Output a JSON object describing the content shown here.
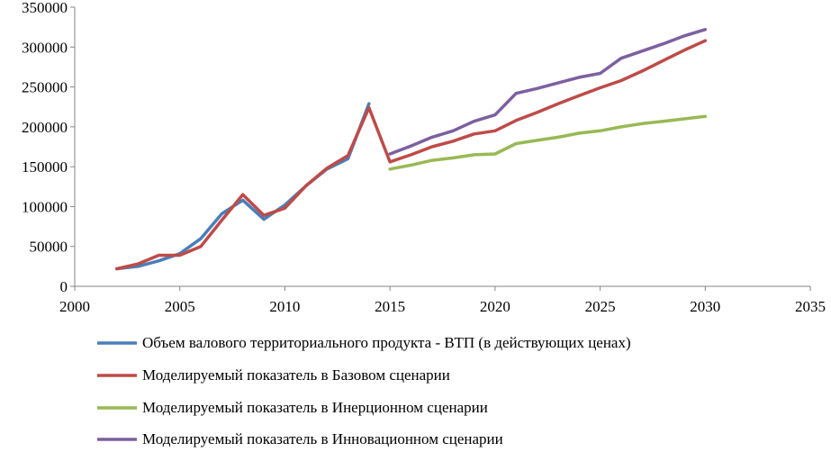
{
  "chart_data": {
    "type": "line",
    "title": "",
    "xlabel": "",
    "ylabel": "",
    "xlim": [
      2000,
      2035
    ],
    "ylim": [
      0,
      350000
    ],
    "x_ticks": [
      2000,
      2005,
      2010,
      2015,
      2020,
      2025,
      2030,
      2035
    ],
    "y_ticks": [
      0,
      50000,
      100000,
      150000,
      200000,
      250000,
      300000,
      350000
    ],
    "x_tick_labels": [
      "2000",
      "2005",
      "2010",
      "2015",
      "2020",
      "2025",
      "2030",
      "2035"
    ],
    "y_tick_labels": [
      "0",
      "50000",
      "100000",
      "150000",
      "200000",
      "250000",
      "300000",
      "350000"
    ],
    "grid": false,
    "legend_position": "bottom",
    "series": [
      {
        "name": "Объем валового территориального продукта - ВТП (в действующих ценах)",
        "color": "#4a7ebb",
        "x": [
          2002,
          2003,
          2004,
          2005,
          2006,
          2007,
          2008,
          2009,
          2010,
          2011,
          2012,
          2013,
          2014
        ],
        "y": [
          22000,
          25000,
          32000,
          41000,
          60000,
          91000,
          108000,
          84000,
          102000,
          126000,
          147000,
          160000,
          229000
        ]
      },
      {
        "name": "Моделируемый показатель в Базовом сценарии",
        "color": "#be4b48",
        "x": [
          2002,
          2003,
          2004,
          2005,
          2006,
          2007,
          2008,
          2009,
          2010,
          2011,
          2012,
          2013,
          2014,
          2015,
          2016,
          2017,
          2018,
          2019,
          2020,
          2021,
          2022,
          2023,
          2024,
          2025,
          2026,
          2027,
          2028,
          2029,
          2030
        ],
        "y": [
          22000,
          28000,
          39000,
          39000,
          50000,
          83000,
          115000,
          89000,
          98000,
          126000,
          148000,
          164000,
          224000,
          156000,
          165000,
          175000,
          182000,
          191000,
          195000,
          208000,
          218000,
          229000,
          239000,
          249000,
          258000,
          270000,
          283000,
          296000,
          308000
        ]
      },
      {
        "name": "Моделируемый показатель в Инерционном сценарии",
        "color": "#98b954",
        "x": [
          2015,
          2016,
          2017,
          2018,
          2019,
          2020,
          2021,
          2022,
          2023,
          2024,
          2025,
          2026,
          2027,
          2028,
          2029,
          2030
        ],
        "y": [
          147000,
          152000,
          158000,
          161000,
          165000,
          166000,
          179000,
          183000,
          187000,
          192000,
          195000,
          200000,
          204000,
          207000,
          210000,
          213000
        ]
      },
      {
        "name": "Моделируемый показатель в Инновационном сценарии",
        "color": "#7d60a0",
        "x": [
          2015,
          2016,
          2017,
          2018,
          2019,
          2020,
          2021,
          2022,
          2023,
          2024,
          2025,
          2026,
          2027,
          2028,
          2029,
          2030
        ],
        "y": [
          166000,
          176000,
          187000,
          195000,
          207000,
          215000,
          242000,
          248000,
          255000,
          262000,
          267000,
          286000,
          295000,
          304000,
          314000,
          322000
        ]
      }
    ]
  }
}
